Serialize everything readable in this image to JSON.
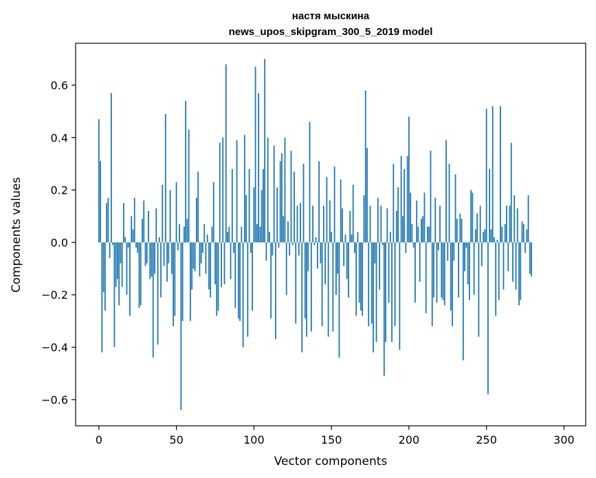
{
  "chart_data": {
    "type": "bar",
    "title_lines": [
      "настя мыскина",
      "news_upos_skipgram_300_5_2019 model"
    ],
    "xlabel": "Vector components",
    "ylabel": "Components values",
    "xlim": [
      -15,
      314
    ],
    "ylim": [
      -0.7,
      0.76
    ],
    "xticks": [
      0,
      50,
      100,
      150,
      200,
      250,
      300
    ],
    "yticks": [
      -0.6,
      -0.4,
      -0.2,
      0.0,
      0.2,
      0.4,
      0.6
    ],
    "xtick_labels": [
      "0",
      "50",
      "100",
      "150",
      "200",
      "250",
      "300"
    ],
    "ytick_labels": [
      "−0.6",
      "−0.4",
      "−0.2",
      "0.0",
      "0.2",
      "0.4",
      "0.6"
    ],
    "grid": false,
    "bar_color": "#1f77b4",
    "values": [
      0.47,
      0.31,
      -0.42,
      -0.19,
      -0.26,
      0.15,
      0.17,
      -0.06,
      0.57,
      -0.01,
      -0.4,
      -0.17,
      -0.14,
      -0.24,
      -0.08,
      -0.17,
      0.15,
      0.02,
      -0.2,
      -0.02,
      -0.28,
      0.1,
      0.05,
      0.17,
      -0.02,
      -0.04,
      -0.25,
      -0.24,
      0.09,
      0.16,
      -0.09,
      -0.08,
      0.12,
      -0.14,
      -0.13,
      -0.44,
      -0.12,
      0.13,
      -0.39,
      0.02,
      -0.21,
      0.22,
      -0.09,
      0.49,
      -0.15,
      -0.08,
      0.2,
      -0.12,
      -0.32,
      -0.28,
      0.23,
      -0.03,
      0.07,
      -0.64,
      -0.3,
      0.06,
      0.54,
      0.09,
      0.43,
      -0.3,
      -0.18,
      -0.1,
      -0.11,
      0.17,
      0.27,
      -0.13,
      -0.08,
      -0.04,
      0.07,
      -0.12,
      0.03,
      -0.18,
      -0.21,
      0.06,
      0.23,
      -0.16,
      -0.28,
      -0.26,
      0.38,
      -0.17,
      0.4,
      -0.16,
      0.68,
      0.04,
      0.06,
      -0.14,
      0.28,
      -0.04,
      -0.25,
      0.39,
      -0.29,
      -0.3,
      0.06,
      -0.4,
      0.41,
      0.18,
      -0.36,
      0.28,
      -0.04,
      -0.26,
      0.21,
      0.67,
      0.07,
      0.57,
      0.06,
      0.2,
      0.28,
      0.7,
      -0.07,
      0.4,
      0.04,
      -0.29,
      -0.05,
      0.37,
      -0.37,
      0.21,
      -0.02,
      0.31,
      0.34,
      0.1,
      0.4,
      -0.2,
      0.08,
      -0.05,
      0.35,
      -0.01,
      0.27,
      -0.31,
      0.14,
      -0.05,
      0.15,
      -0.42,
      0.3,
      -0.29,
      -0.36,
      -0.11,
      0.46,
      -0.34,
      0.14,
      -0.01,
      0.02,
      -0.1,
      0.31,
      -0.08,
      -0.32,
      0.14,
      -0.16,
      0.25,
      -0.36,
      0.16,
      0.04,
      -0.34,
      0.29,
      -0.2,
      -0.12,
      -0.44,
      0.24,
      0.13,
      -0.09,
      0.03,
      -0.14,
      -0.21,
      0.12,
      0.03,
      0.22,
      -0.04,
      -0.28,
      0.04,
      -0.23,
      -0.26,
      -0.28,
      0.18,
      0.58,
      0.36,
      -0.32,
      0.14,
      -0.31,
      -0.42,
      -0.08,
      -0.38,
      0.17,
      -0.18,
      0.14,
      -0.01,
      -0.51,
      -0.38,
      0.13,
      -0.23,
      0.04,
      -0.38,
      0.3,
      -0.32,
      0.12,
      0.21,
      -0.41,
      0.33,
      0.1,
      0.28,
      -0.04,
      0.33,
      0.48,
      0.19,
      0.07,
      -0.02,
      -0.23,
      0.16,
      0.06,
      -0.15,
      0.09,
      0.1,
      0.19,
      -0.27,
      0.06,
      0.06,
      0.35,
      -0.32,
      -0.21,
      0.17,
      -0.23,
      -0.03,
      0.14,
      -0.21,
      -0.22,
      -0.24,
      0.39,
      -0.07,
      0.3,
      -0.26,
      -0.32,
      -0.07,
      0.26,
      0.09,
      -0.21,
      0.11,
      0.09,
      -0.45,
      -0.11,
      -0.02,
      -0.16,
      -0.22,
      0.2,
      0.19,
      -0.2,
      0.05,
      0.11,
      -0.36,
      0.14,
      -0.09,
      0.04,
      0.05,
      0.51,
      -0.58,
      0.28,
      0.05,
      0.52,
      0.02,
      -0.28,
      0.01,
      -0.22,
      0.52,
      0.06,
      -0.18,
      0.07,
      0.14,
      -0.11,
      0.14,
      0.38,
      -0.15,
      0.18,
      -0.18,
      0.13,
      -0.24,
      -0.22,
      0.08,
      0.07,
      -0.04,
      0.05,
      0.18,
      -0.12,
      -0.13
    ]
  }
}
